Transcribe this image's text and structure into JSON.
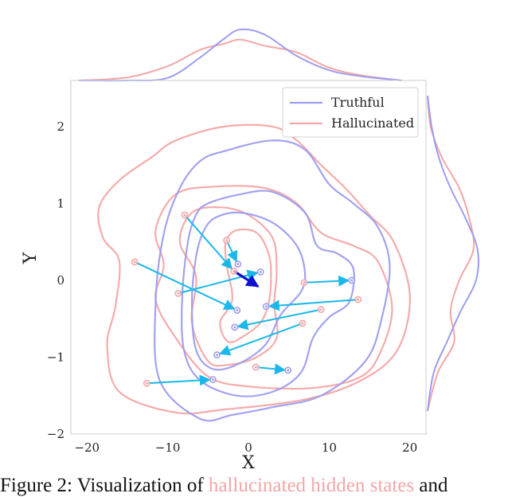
{
  "chart_data": {
    "type": "scatter",
    "xlabel": "X",
    "ylabel": "Y",
    "xlim": [
      -22,
      22
    ],
    "ylim": [
      -2,
      2.6
    ],
    "xticks": [
      -20,
      -10,
      0,
      10,
      20
    ],
    "yticks": [
      -2,
      -1,
      0,
      1,
      2
    ],
    "xtick_labels": [
      "−20",
      "−10",
      "0",
      "10",
      "20"
    ],
    "ytick_labels": [
      "−2",
      "−1",
      "0",
      "1",
      "2"
    ],
    "grid": false,
    "legend": {
      "position": "top-right",
      "entries": [
        "Truthful",
        "Hallucinated"
      ]
    },
    "colors": {
      "truthful": "#9d9df0",
      "hallucinated": "#f4a6a6",
      "arrow": "#1ab8ea",
      "arrow_highlight": "#1010d0"
    },
    "series": [
      {
        "name": "Hallucinated",
        "color": "#f4a6a6",
        "points": [
          [
            -14.1,
            0.24
          ],
          [
            -7.9,
            0.85
          ],
          [
            -2.7,
            0.52
          ],
          [
            -1.8,
            0.12
          ],
          [
            -8.7,
            -0.17
          ],
          [
            6.9,
            -0.03
          ],
          [
            13.6,
            -0.25
          ],
          [
            9.0,
            -0.38
          ],
          [
            6.7,
            -0.56
          ],
          [
            0.9,
            -1.13
          ],
          [
            -12.6,
            -1.34
          ]
        ]
      },
      {
        "name": "Truthful",
        "color": "#9d9df0",
        "points": [
          [
            -1.3,
            0.21
          ],
          [
            -1.4,
            -0.39
          ],
          [
            1.5,
            0.11
          ],
          [
            12.8,
            0.0
          ],
          [
            2.2,
            -0.34
          ],
          [
            -1.7,
            -0.61
          ],
          [
            -3.9,
            -0.97
          ],
          [
            4.9,
            -1.17
          ],
          [
            -4.4,
            -1.29
          ]
        ]
      }
    ],
    "arrows": [
      {
        "from": [
          -14.1,
          0.24
        ],
        "to": [
          -1.4,
          -0.39
        ]
      },
      {
        "from": [
          -7.9,
          0.85
        ],
        "to": [
          -1.8,
          0.12
        ]
      },
      {
        "from": [
          -2.7,
          0.52
        ],
        "to": [
          -1.3,
          0.21
        ]
      },
      {
        "from": [
          -8.7,
          -0.17
        ],
        "to": [
          1.5,
          0.11
        ]
      },
      {
        "from": [
          6.9,
          -0.03
        ],
        "to": [
          12.8,
          0.0
        ]
      },
      {
        "from": [
          13.6,
          -0.25
        ],
        "to": [
          2.2,
          -0.34
        ]
      },
      {
        "from": [
          9.0,
          -0.38
        ],
        "to": [
          -1.7,
          -0.61
        ]
      },
      {
        "from": [
          6.7,
          -0.56
        ],
        "to": [
          -3.9,
          -0.97
        ]
      },
      {
        "from": [
          0.9,
          -1.13
        ],
        "to": [
          4.9,
          -1.17
        ]
      },
      {
        "from": [
          -12.6,
          -1.34
        ],
        "to": [
          -4.4,
          -1.29
        ]
      },
      {
        "from": [
          -1.8,
          0.12
        ],
        "to": [
          1.2,
          -0.08
        ],
        "highlight": true
      }
    ],
    "contours": {
      "Truthful": [
        [
          [
            -3,
            1.68
          ],
          [
            3,
            1.82
          ],
          [
            7,
            1.7
          ],
          [
            10,
            1.25
          ],
          [
            13,
            1.0
          ],
          [
            16,
            0.7
          ],
          [
            17.5,
            0.2
          ],
          [
            16.5,
            -0.5
          ],
          [
            14.5,
            -1.05
          ],
          [
            9,
            -1.5
          ],
          [
            3,
            -1.65
          ],
          [
            -2,
            -1.75
          ],
          [
            -6,
            -1.8
          ],
          [
            -11,
            -1.3
          ],
          [
            -11.5,
            -0.3
          ],
          [
            -10.5,
            0.6
          ],
          [
            -8.5,
            1.2
          ],
          [
            -6,
            1.55
          ]
        ],
        [
          [
            -5,
            1.0
          ],
          [
            -1,
            1.12
          ],
          [
            3,
            1.15
          ],
          [
            7,
            0.88
          ],
          [
            8.5,
            0.45
          ],
          [
            11,
            0.35
          ],
          [
            13,
            0.15
          ],
          [
            12.5,
            -0.28
          ],
          [
            10,
            -0.48
          ],
          [
            8,
            -0.75
          ],
          [
            6.5,
            -1.2
          ],
          [
            3,
            -1.45
          ],
          [
            -1.5,
            -1.5
          ],
          [
            -6,
            -1.3
          ],
          [
            -8,
            -0.9
          ],
          [
            -8.2,
            -0.2
          ],
          [
            -7.5,
            0.5
          ],
          [
            -6.5,
            0.85
          ]
        ],
        [
          [
            -4,
            0.82
          ],
          [
            -1,
            0.88
          ],
          [
            3,
            0.75
          ],
          [
            6,
            0.45
          ],
          [
            7,
            0.1
          ],
          [
            6.5,
            -0.15
          ],
          [
            4,
            -0.45
          ],
          [
            2,
            -0.85
          ],
          [
            -1.5,
            -1.1
          ],
          [
            -4.5,
            -1.15
          ],
          [
            -6.5,
            -0.9
          ],
          [
            -7,
            -0.3
          ],
          [
            -6.5,
            0.3
          ],
          [
            -5.5,
            0.65
          ]
        ]
      ],
      "Hallucinated": [
        [
          [
            -9,
            1.82
          ],
          [
            -3,
            2.0
          ],
          [
            3,
            2.0
          ],
          [
            6,
            1.82
          ],
          [
            9,
            1.5
          ],
          [
            12,
            1.2
          ],
          [
            15,
            0.85
          ],
          [
            18,
            0.5
          ],
          [
            20,
            -0.2
          ],
          [
            18.5,
            -0.9
          ],
          [
            14,
            -1.3
          ],
          [
            7,
            -1.55
          ],
          [
            -3,
            -1.68
          ],
          [
            -9,
            -1.72
          ],
          [
            -16,
            -1.45
          ],
          [
            -17.5,
            -0.85
          ],
          [
            -16.5,
            -0.35
          ],
          [
            -16,
            0.25
          ],
          [
            -18,
            0.55
          ],
          [
            -18.5,
            0.95
          ],
          [
            -16,
            1.3
          ],
          [
            -12,
            1.6
          ]
        ],
        [
          [
            -9,
            1.12
          ],
          [
            -4,
            1.22
          ],
          [
            2,
            1.2
          ],
          [
            6,
            1.0
          ],
          [
            9,
            0.62
          ],
          [
            13,
            0.45
          ],
          [
            16,
            0.25
          ],
          [
            17.8,
            -0.35
          ],
          [
            16.5,
            -0.9
          ],
          [
            14,
            -1.25
          ],
          [
            8,
            -1.4
          ],
          [
            0,
            -1.38
          ],
          [
            -5,
            -1.25
          ],
          [
            -9,
            -0.75
          ],
          [
            -11.5,
            -0.25
          ],
          [
            -10.5,
            0.2
          ],
          [
            -11.5,
            0.65
          ]
        ],
        [
          [
            -7,
            0.88
          ],
          [
            -3.5,
            0.95
          ],
          [
            0,
            0.85
          ],
          [
            3,
            0.55
          ],
          [
            3.5,
            0.1
          ],
          [
            3.2,
            -0.3
          ],
          [
            3.5,
            -0.75
          ],
          [
            1,
            -1.0
          ],
          [
            -2.5,
            -1.1
          ],
          [
            -5,
            -1.05
          ],
          [
            -7,
            -0.55
          ],
          [
            -6.5,
            0.05
          ],
          [
            -8.5,
            0.5
          ]
        ],
        [
          [
            -1.5,
            0.65
          ],
          [
            1,
            0.62
          ],
          [
            2.5,
            0.35
          ],
          [
            2.8,
            0.05
          ],
          [
            2.5,
            -0.3
          ],
          [
            1.5,
            -0.55
          ],
          [
            -0.5,
            -0.72
          ],
          [
            -2.5,
            -0.8
          ],
          [
            -3.5,
            -0.55
          ],
          [
            -2,
            -0.25
          ],
          [
            -2.7,
            0.2
          ],
          [
            -2.8,
            0.5
          ]
        ]
      ]
    },
    "marginal_x": {
      "x": [
        -21,
        -15,
        -10,
        -6,
        -3,
        -1,
        2,
        6,
        10,
        14,
        19
      ],
      "Truthful": [
        0,
        0,
        0.05,
        0.45,
        0.82,
        1.0,
        0.9,
        0.48,
        0.2,
        0.08,
        0
      ],
      "Hallucinated": [
        0,
        0.06,
        0.28,
        0.6,
        0.72,
        0.8,
        0.68,
        0.55,
        0.25,
        0.1,
        0
      ]
    },
    "marginal_y": {
      "y": [
        2.4,
        2.0,
        1.6,
        1.2,
        0.8,
        0.4,
        0.0,
        -0.4,
        -0.8,
        -1.2,
        -1.7
      ],
      "Truthful": [
        0,
        0.08,
        0.22,
        0.45,
        0.75,
        0.98,
        0.95,
        0.65,
        0.38,
        0.12,
        0
      ],
      "Hallucinated": [
        0,
        0.06,
        0.28,
        0.62,
        0.82,
        0.9,
        0.62,
        0.45,
        0.52,
        0.2,
        0
      ]
    }
  },
  "caption": {
    "prefix": "Figure 2: Visualization of ",
    "highlight": "hallucinated hidden states",
    "suffix": " and"
  }
}
